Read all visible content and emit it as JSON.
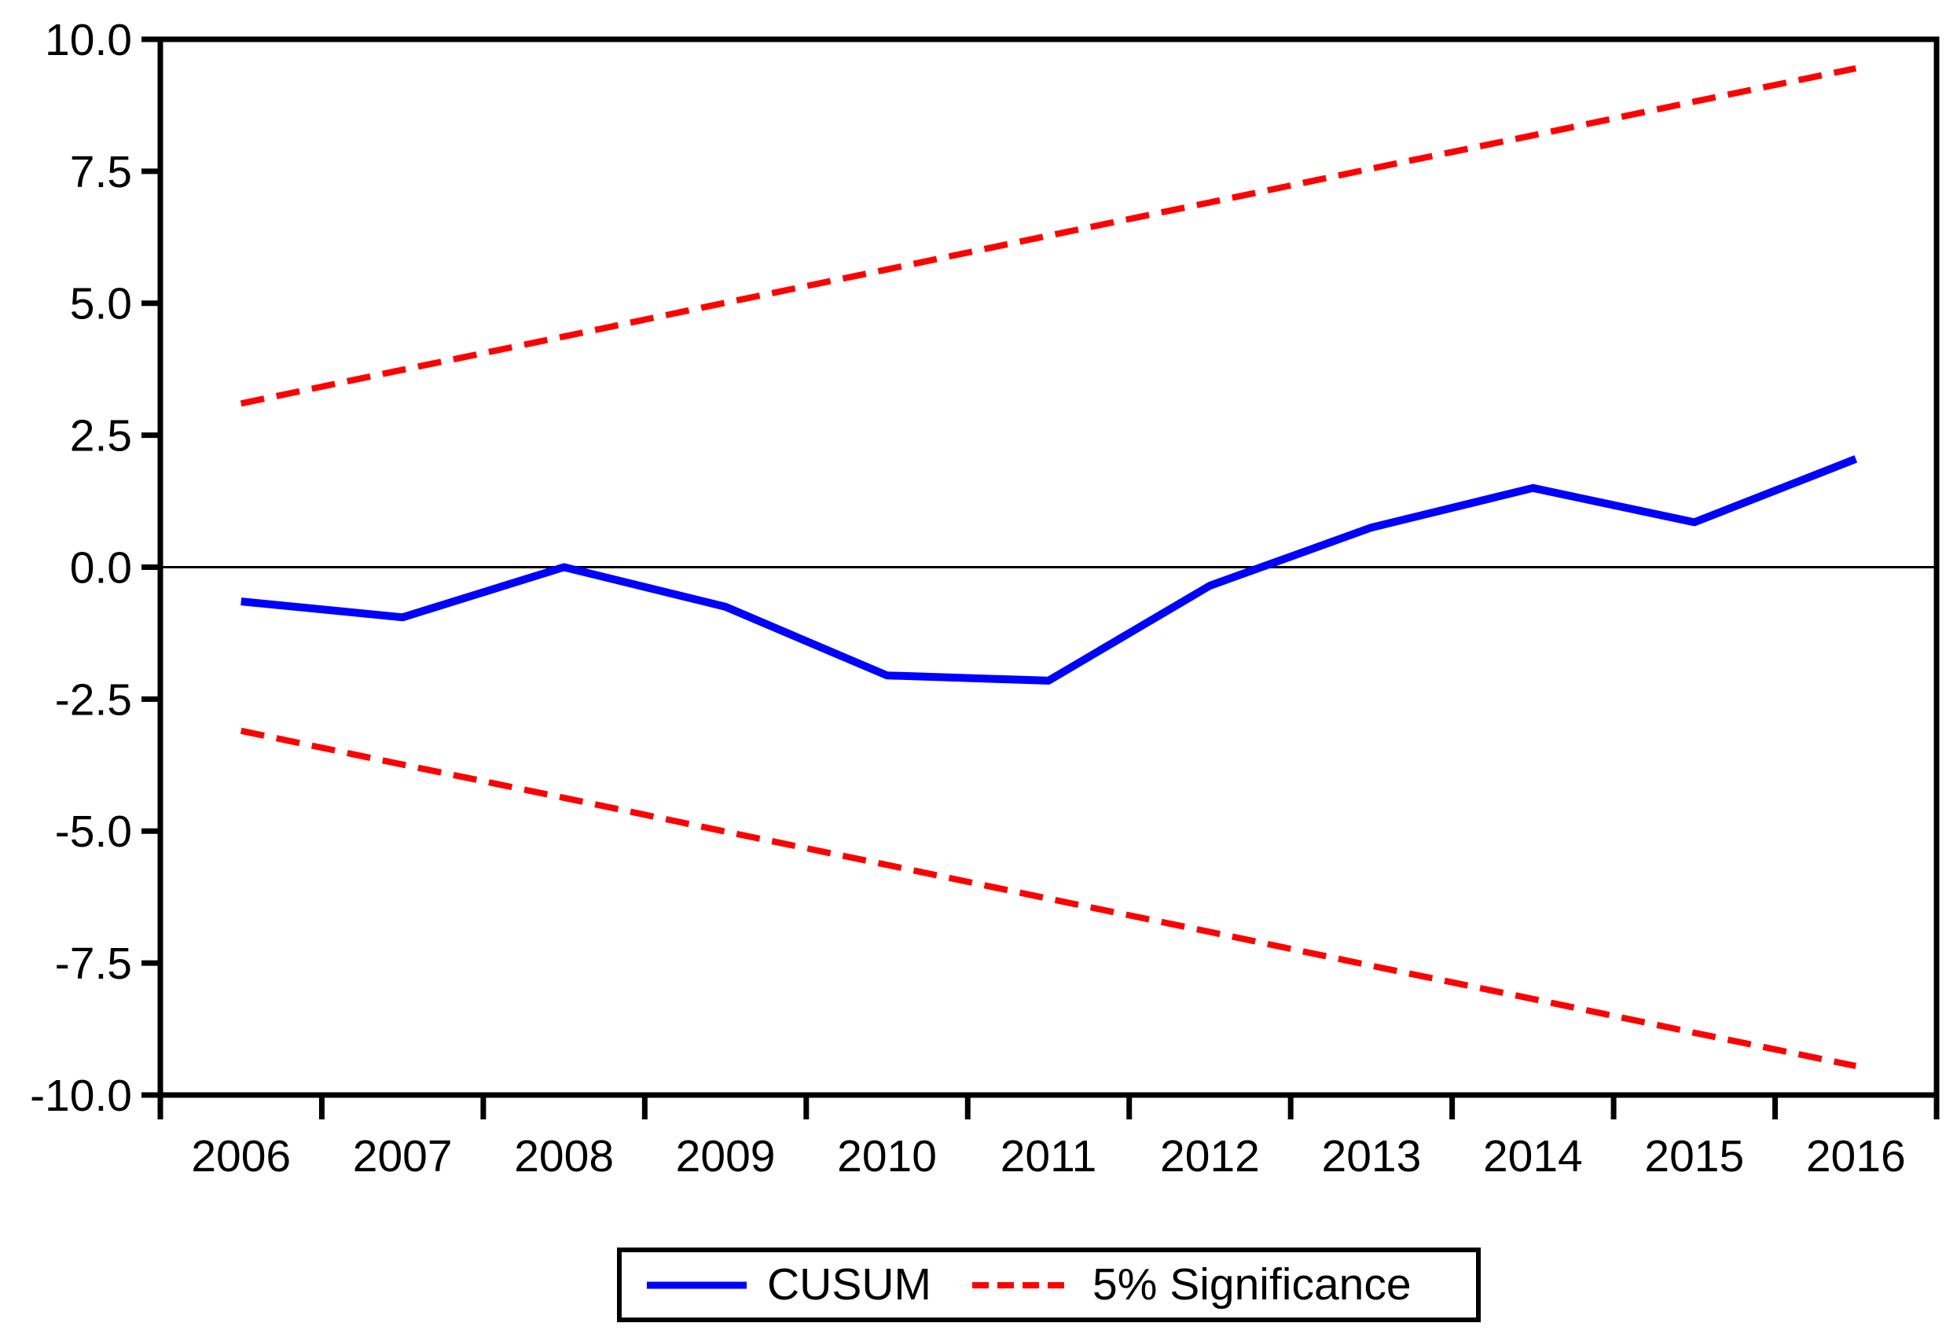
{
  "chart_data": {
    "type": "line",
    "title": "",
    "xlabel": "",
    "ylabel": "",
    "x": [
      2006,
      2007,
      2008,
      2009,
      2010,
      2011,
      2012,
      2013,
      2014,
      2015,
      2016
    ],
    "xtick_labels": [
      "2006",
      "2007",
      "2008",
      "2009",
      "2010",
      "2011",
      "2012",
      "2013",
      "2014",
      "2015",
      "2016"
    ],
    "ylim": [
      -10,
      10
    ],
    "yticks": [
      10,
      7.5,
      5,
      2.5,
      0,
      -2.5,
      -5,
      -7.5,
      -10
    ],
    "ytick_labels": [
      "10.0",
      "7.5",
      "5.0",
      "2.5",
      "0.0",
      "-2.5",
      "-5.0",
      "-7.5",
      "-10.0"
    ],
    "zero_line": true,
    "grid": false,
    "series": [
      {
        "id": "cusum",
        "name": "CUSUM",
        "color": "#0000ff",
        "style": "solid",
        "values": [
          -0.65,
          -0.95,
          0.0,
          -0.75,
          -2.05,
          -2.15,
          -0.35,
          0.75,
          1.5,
          0.85,
          2.05
        ]
      },
      {
        "id": "sig-upper",
        "name": "5% Significance (upper bound)",
        "color": "#ff0000",
        "style": "dashed",
        "values": [
          3.1,
          3.74,
          4.37,
          5.01,
          5.64,
          6.28,
          6.91,
          7.55,
          8.18,
          8.82,
          9.45
        ]
      },
      {
        "id": "sig-lower",
        "name": "5% Significance (lower bound)",
        "color": "#ff0000",
        "style": "dashed",
        "values": [
          -3.1,
          -3.74,
          -4.37,
          -5.01,
          -5.64,
          -6.28,
          -6.91,
          -7.55,
          -8.18,
          -8.82,
          -9.45
        ]
      }
    ],
    "legend": {
      "position": "bottom",
      "entries": [
        {
          "label": "CUSUM",
          "color": "#0000ff",
          "style": "solid"
        },
        {
          "label": "5% Significance",
          "color": "#ff0000",
          "style": "dashed"
        }
      ]
    },
    "colors": {
      "axis": "#000000",
      "background": "#ffffff",
      "cusum": "#0000ff",
      "significance": "#ff0000"
    }
  }
}
